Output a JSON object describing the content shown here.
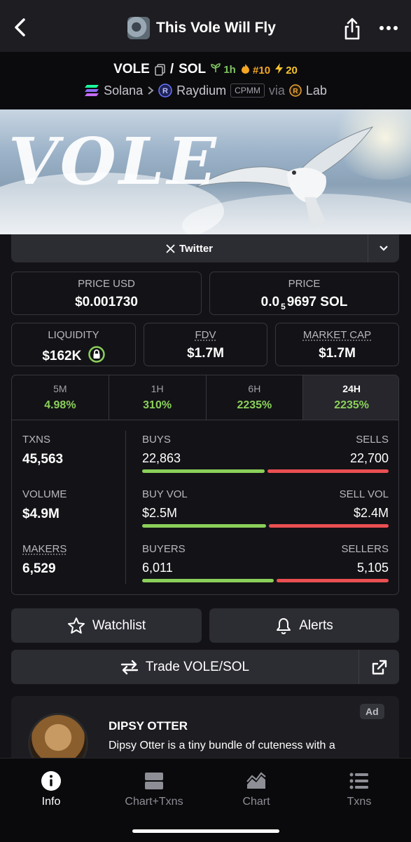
{
  "header": {
    "title": "This Vole Will Fly"
  },
  "pair": {
    "base": "VOLE",
    "separator": "/",
    "quote": "SOL",
    "age": "1h",
    "rank": "#10",
    "boosts": "20",
    "chain": "Solana",
    "dex": "Raydium",
    "pool_type": "CPMM",
    "via_label": "via",
    "launchpad": "Lab"
  },
  "banner": {
    "word": "VOLE"
  },
  "socials": {
    "twitter_label": "Twitter"
  },
  "prices": {
    "usd_label": "PRICE USD",
    "usd_value": "$0.001730",
    "native_label": "PRICE",
    "native_prefix": "0.0",
    "native_zeros": "5",
    "native_digits": "9697 SOL"
  },
  "metrics": {
    "liquidity_label": "LIQUIDITY",
    "liquidity_value": "$162K",
    "fdv_label": "FDV",
    "fdv_value": "$1.7M",
    "mcap_label": "MARKET CAP",
    "mcap_value": "$1.7M"
  },
  "timeframes": [
    {
      "label": "5M",
      "change": "4.98%"
    },
    {
      "label": "1H",
      "change": "310%"
    },
    {
      "label": "6H",
      "change": "2235%"
    },
    {
      "label": "24H",
      "change": "2235%"
    }
  ],
  "stats": {
    "txns_label": "TXNS",
    "txns_value": "45,563",
    "volume_label": "VOLUME",
    "volume_value": "$4.9M",
    "makers_label": "MAKERS",
    "makers_value": "6,529",
    "buys_label": "BUYS",
    "buys_value": "22,863",
    "sells_label": "SELLS",
    "sells_value": "22,700",
    "buy_vol_label": "BUY VOL",
    "buy_vol_value": "$2.5M",
    "sell_vol_label": "SELL VOL",
    "sell_vol_value": "$2.4M",
    "buyers_label": "BUYERS",
    "buyers_value": "6,011",
    "sellers_label": "SELLERS",
    "sellers_value": "5,105",
    "buy_share": 0.502,
    "buy_vol_share": 0.51,
    "buyers_share": 0.541
  },
  "actions": {
    "watchlist_label": "Watchlist",
    "alerts_label": "Alerts",
    "trade_label": "Trade VOLE/SOL"
  },
  "ad": {
    "badge": "Ad",
    "title": "DIPSY OTTER",
    "text": "Dipsy Otter is a tiny bundle of cuteness with a"
  },
  "nav": {
    "items": [
      {
        "label": "Info",
        "icon": "info-icon"
      },
      {
        "label": "Chart+Txns",
        "icon": "layout-icon"
      },
      {
        "label": "Chart",
        "icon": "area-chart-icon"
      },
      {
        "label": "Txns",
        "icon": "list-icon"
      }
    ]
  },
  "colors": {
    "accent_green": "#8bd05a",
    "accent_red": "#ea4f52",
    "background": "#131317",
    "card": "#2c2c33"
  }
}
